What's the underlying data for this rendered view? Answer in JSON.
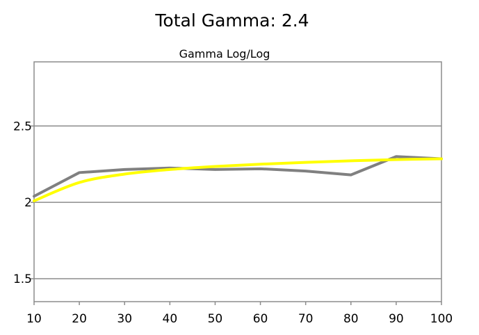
{
  "chart_data": {
    "type": "line",
    "title": "Total Gamma: 2.4",
    "subtitle": "Gamma Log/Log",
    "x": [
      10,
      20,
      30,
      40,
      50,
      60,
      70,
      80,
      90,
      100
    ],
    "xlim": [
      10,
      100
    ],
    "ylim": [
      1.35,
      2.92
    ],
    "x_ticks": [
      "10",
      "20",
      "30",
      "40",
      "50",
      "60",
      "70",
      "80",
      "90",
      "100"
    ],
    "y_ticks": [
      {
        "value": 1.5,
        "label": "1.5"
      },
      {
        "value": 2.0,
        "label": "2"
      },
      {
        "value": 2.5,
        "label": "2.5"
      }
    ],
    "grid": {
      "horizontal": true,
      "vertical": false
    },
    "series": [
      {
        "color": "#808080",
        "values": [
          2.04,
          2.195,
          2.215,
          2.225,
          2.215,
          2.22,
          2.205,
          2.18,
          2.3,
          2.285
        ]
      },
      {
        "color": "#ffff00",
        "values": [
          2.01,
          2.13,
          2.185,
          2.215,
          2.235,
          2.25,
          2.262,
          2.272,
          2.28,
          2.285
        ]
      }
    ]
  }
}
